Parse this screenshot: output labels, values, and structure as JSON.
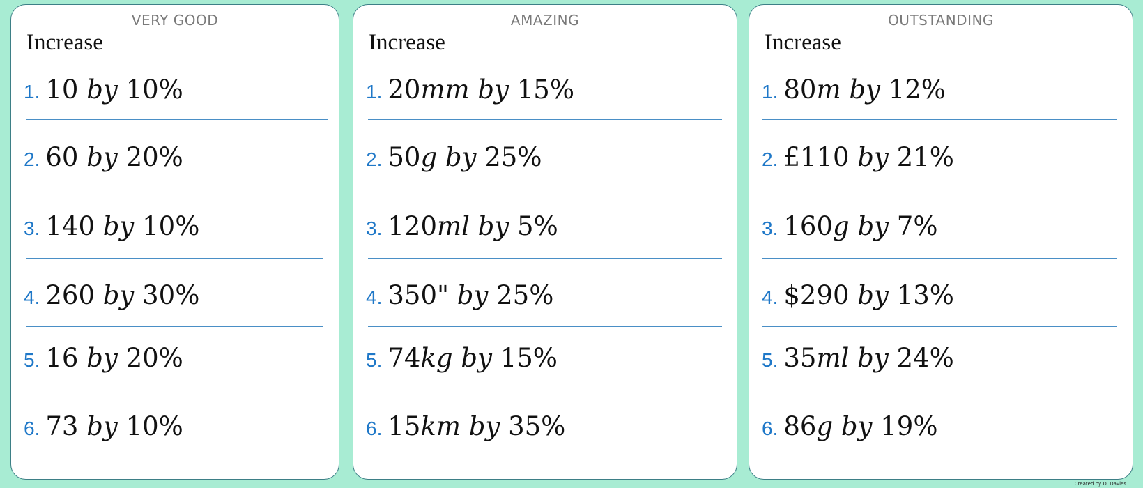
{
  "cards": [
    {
      "level": "VERY GOOD",
      "heading": "Increase",
      "questions": [
        {
          "number": "1.",
          "amount": "10",
          "unit": "",
          "word": "by",
          "percent": "10%"
        },
        {
          "number": "2.",
          "amount": "60",
          "unit": "",
          "word": "by",
          "percent": "20%"
        },
        {
          "number": "3.",
          "amount": "140",
          "unit": "",
          "word": "by",
          "percent": "10%"
        },
        {
          "number": "4.",
          "amount": "260",
          "unit": "",
          "word": "by",
          "percent": "30%"
        },
        {
          "number": "5.",
          "amount": "16",
          "unit": "",
          "word": "by",
          "percent": "20%"
        },
        {
          "number": "6.",
          "amount": "73",
          "unit": "",
          "word": "by",
          "percent": "10%"
        }
      ]
    },
    {
      "level": "AMAZING",
      "heading": "Increase",
      "questions": [
        {
          "number": "1.",
          "amount": "20",
          "unit": "mm",
          "word": "by",
          "percent": "15%"
        },
        {
          "number": "2.",
          "amount": "50",
          "unit": "g",
          "word": "by",
          "percent": "25%"
        },
        {
          "number": "3.",
          "amount": "120",
          "unit": "ml",
          "word": "by",
          "percent": "5%"
        },
        {
          "number": "4.",
          "amount": "350\"",
          "unit": "",
          "word": "by",
          "percent": "25%"
        },
        {
          "number": "5.",
          "amount": "74",
          "unit": "kg",
          "word": "by",
          "percent": "15%"
        },
        {
          "number": "6.",
          "amount": "15",
          "unit": "km",
          "word": "by",
          "percent": "35%"
        }
      ]
    },
    {
      "level": "OUTSTANDING",
      "heading": "Increase",
      "questions": [
        {
          "number": "1.",
          "amount": "80",
          "unit": "m",
          "word": "by",
          "percent": "12%"
        },
        {
          "number": "2.",
          "amount": "£110",
          "unit": "",
          "word": "by",
          "percent": "21%"
        },
        {
          "number": "3.",
          "amount": "160",
          "unit": "g",
          "word": "by",
          "percent": "7%"
        },
        {
          "number": "4.",
          "amount": "$290",
          "unit": "",
          "word": "by",
          "percent": "13%"
        },
        {
          "number": "5.",
          "amount": "35",
          "unit": "ml",
          "word": "by",
          "percent": "24%"
        },
        {
          "number": "6.",
          "amount": "86",
          "unit": "g",
          "word": "by",
          "percent": "19%"
        }
      ]
    }
  ],
  "credit": "Created by D. Davies",
  "colors": {
    "background": "#a8ecd3",
    "card_border": "#3d7f86",
    "number": "#1f78c8",
    "separator": "#4a8fc6"
  }
}
